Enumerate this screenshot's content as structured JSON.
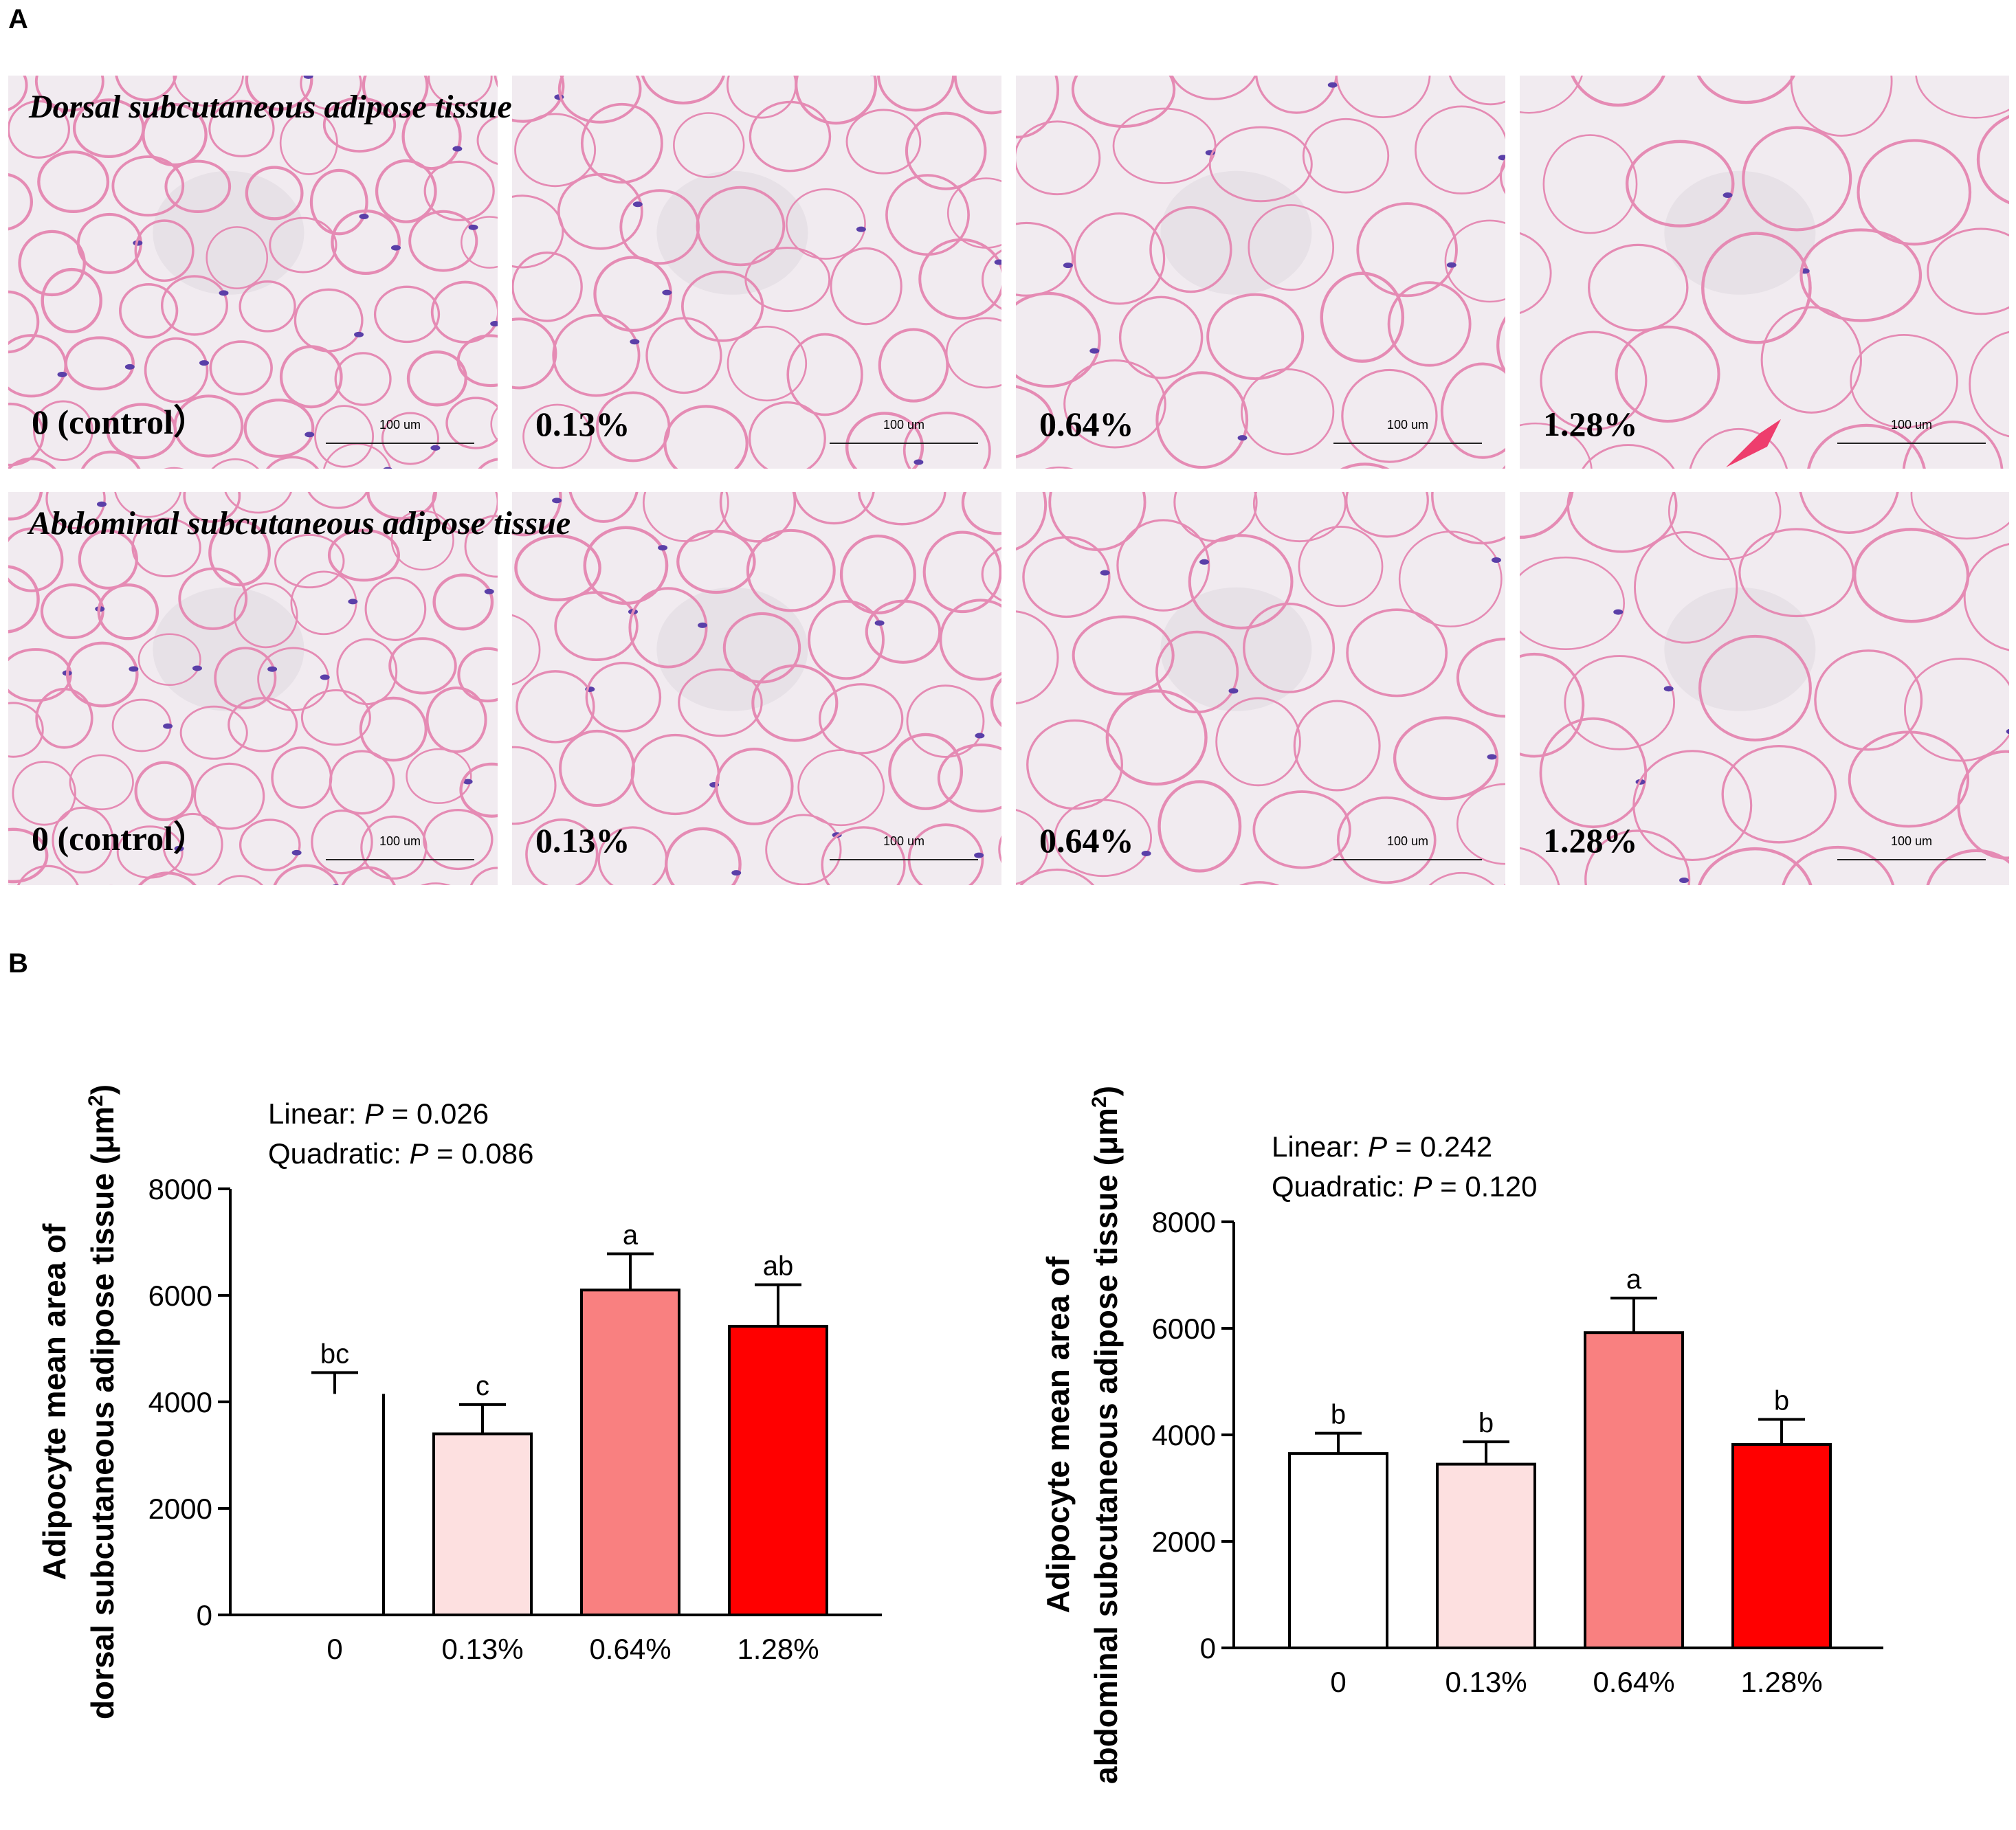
{
  "panel_a": {
    "letter": "A",
    "rows": [
      {
        "title": "Dorsal subcutaneous adipose tissue",
        "panels": [
          {
            "label": "0 (control）",
            "scale": "100 um"
          },
          {
            "label": "0.13%",
            "scale": "100 um"
          },
          {
            "label": "0.64%",
            "scale": "100 um"
          },
          {
            "label": "1.28%",
            "scale": "100 um"
          }
        ]
      },
      {
        "title": "Abdominal subcutaneous adipose tissue",
        "panels": [
          {
            "label": "0 (control）",
            "scale": "100 um"
          },
          {
            "label": "0.13%",
            "scale": "100 um"
          },
          {
            "label": "0.64%",
            "scale": "100 um"
          },
          {
            "label": "1.28%",
            "scale": "100 um"
          }
        ]
      }
    ]
  },
  "panel_b": {
    "letter": "B"
  },
  "chart_data": [
    {
      "type": "bar",
      "categories": [
        "0",
        "0.13%",
        "0.64%",
        "1.28%"
      ],
      "values": [
        4150,
        3400,
        6100,
        5420
      ],
      "errors": [
        400,
        550,
        680,
        780
      ],
      "letters": [
        "bc",
        "c",
        "a",
        "ab"
      ],
      "colors": [
        "#ffffff",
        "#fde0e0",
        "#f98080",
        "#ff0000"
      ],
      "ylabel_line1": "Adipocyte mean area of",
      "ylabel_line2": "dorsal subcutaneous adipose tissue (μm",
      "ylabel_sup": "2",
      "ylabel_close": ")",
      "yticks": [
        0,
        2000,
        4000,
        6000,
        8000
      ],
      "ylim": [
        0,
        8000
      ],
      "stats": [
        {
          "prefix": "Linear: ",
          "p": "P",
          "value": " = 0.026"
        },
        {
          "prefix": "Quadratic: ",
          "p": "P",
          "value": " = 0.086"
        }
      ]
    },
    {
      "type": "bar",
      "categories": [
        "0",
        "0.13%",
        "0.64%",
        "1.28%"
      ],
      "values": [
        3650,
        3450,
        5920,
        3820
      ],
      "errors": [
        380,
        420,
        650,
        470
      ],
      "letters": [
        "b",
        "b",
        "a",
        "b"
      ],
      "colors": [
        "#ffffff",
        "#fde0e0",
        "#f98080",
        "#ff0000"
      ],
      "ylabel_line1": "Adipocyte mean area of",
      "ylabel_line2": "abdominal subcutaneous adipose tissue (μm",
      "ylabel_sup": "2",
      "ylabel_close": ")",
      "yticks": [
        0,
        2000,
        4000,
        6000,
        8000
      ],
      "ylim": [
        0,
        8000
      ],
      "stats": [
        {
          "prefix": "Linear: ",
          "p": "P",
          "value": " = 0.242"
        },
        {
          "prefix": "Quadratic: ",
          "p": "P",
          "value": " = 0.120"
        }
      ]
    }
  ]
}
